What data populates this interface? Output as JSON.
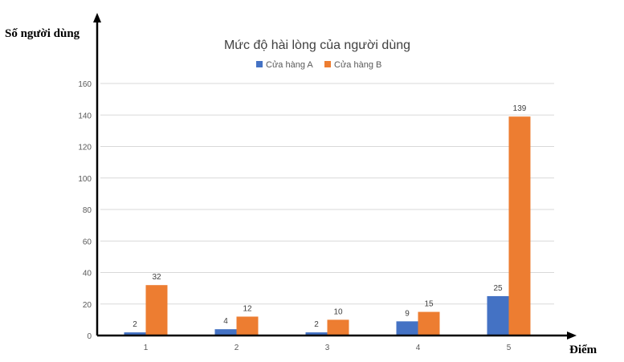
{
  "chart_data": {
    "type": "bar",
    "title": "Mức độ hài lòng của người dùng",
    "ylabel": "Số người dùng",
    "xlabel": "Điểm",
    "categories": [
      "1",
      "2",
      "3",
      "4",
      "5"
    ],
    "series": [
      {
        "name": "Cửa hàng A",
        "values": [
          2,
          4,
          2,
          9,
          25
        ],
        "color": "#4472C4"
      },
      {
        "name": "Cửa hàng B",
        "values": [
          32,
          12,
          10,
          15,
          139
        ],
        "color": "#ED7D31"
      }
    ],
    "ylim": [
      0,
      160
    ],
    "yticks": [
      0,
      20,
      40,
      60,
      80,
      100,
      120,
      140,
      160
    ],
    "grid": true,
    "legend_position": "top"
  }
}
